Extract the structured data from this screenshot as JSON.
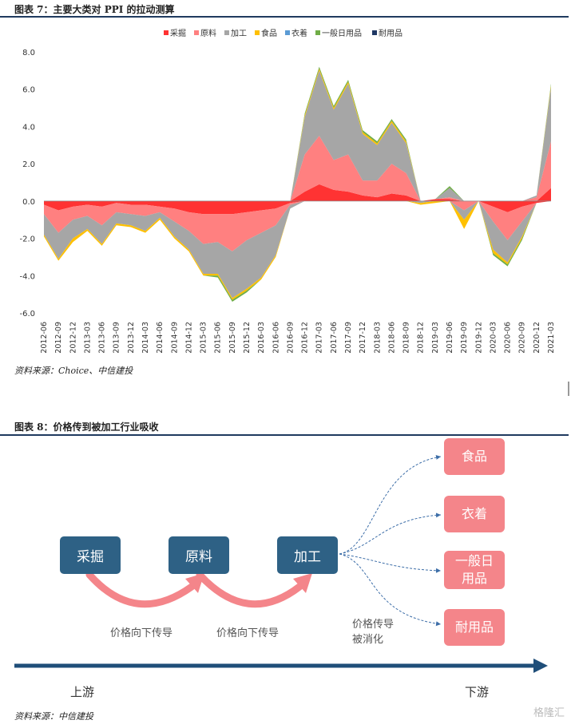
{
  "figure7": {
    "title": "图表 7：主要大类对 PPI 的拉动测算",
    "source": "资料来源：Choice、中信建投"
  },
  "figure8": {
    "title": "图表 8：价格传到被加工行业吸收",
    "source": "资料来源：中信建投",
    "nodes": {
      "mining": "采掘",
      "raw": "原料",
      "processing": "加工"
    },
    "categories": {
      "food": "食品",
      "clothing": "衣着",
      "daily": "一般日\n用品",
      "durable": "耐用品"
    },
    "arrow_label_1": "价格向下传导",
    "arrow_label_2": "价格向下传导",
    "absorbed_label": "价格传导\n被消化",
    "upstream": "上游",
    "downstream": "下游",
    "colors": {
      "node": "#2e6185",
      "category": "#f4858a",
      "arc": "#f4858a",
      "axis_arrow": "#1f4e79"
    }
  },
  "watermark": "格隆汇",
  "chart_data": {
    "type": "area",
    "stacked": true,
    "ylim": [
      -6.0,
      8.0
    ],
    "yticks": [
      "8.0",
      "6.0",
      "4.0",
      "2.0",
      "0.0",
      "-2.0",
      "-4.0",
      "-6.0"
    ],
    "xticks": [
      "2012-06",
      "2012-09",
      "2012-12",
      "2013-03",
      "2013-06",
      "2013-09",
      "2013-12",
      "2014-03",
      "2014-06",
      "2014-09",
      "2014-12",
      "2015-03",
      "2015-06",
      "2015-09",
      "2015-12",
      "2016-03",
      "2016-06",
      "2016-09",
      "2016-12",
      "2017-03",
      "2017-06",
      "2017-09",
      "2017-12",
      "2018-03",
      "2018-06",
      "2018-09",
      "2018-12",
      "2019-03",
      "2019-06",
      "2019-09",
      "2019-12",
      "2020-03",
      "2020-06",
      "2020-09",
      "2020-12",
      "2021-03"
    ],
    "legend_position": "top",
    "series": [
      {
        "name": "采掘",
        "color": "#ff3333",
        "values": [
          -0.2,
          -0.5,
          -0.3,
          -0.2,
          -0.3,
          -0.1,
          -0.2,
          -0.2,
          -0.3,
          -0.4,
          -0.6,
          -0.7,
          -0.7,
          -0.7,
          -0.6,
          -0.5,
          -0.4,
          -0.1,
          0.5,
          0.9,
          0.6,
          0.5,
          0.3,
          0.2,
          0.4,
          0.3,
          0.0,
          0.1,
          0.1,
          0.0,
          0.0,
          -0.3,
          -0.6,
          -0.3,
          -0.1,
          0.7
        ]
      },
      {
        "name": "原料",
        "color": "#ff8080",
        "values": [
          -0.5,
          -1.2,
          -0.7,
          -0.6,
          -1.0,
          -0.5,
          -0.5,
          -0.6,
          -0.3,
          -0.7,
          -1.0,
          -1.6,
          -1.5,
          -2.0,
          -1.5,
          -1.2,
          -0.9,
          -0.1,
          2.0,
          2.6,
          1.6,
          2.0,
          0.8,
          0.9,
          1.6,
          1.2,
          0.0,
          0.0,
          0.1,
          -0.5,
          0.0,
          -0.8,
          -1.5,
          -0.8,
          0.2,
          2.5
        ]
      },
      {
        "name": "加工",
        "color": "#a6a6a6",
        "values": [
          -1.1,
          -1.4,
          -1.0,
          -0.7,
          -1.0,
          -0.6,
          -0.6,
          -0.8,
          -0.3,
          -0.8,
          -1.0,
          -1.6,
          -1.7,
          -2.5,
          -2.6,
          -2.4,
          -1.6,
          -0.2,
          2.0,
          3.5,
          2.7,
          3.8,
          2.5,
          1.9,
          2.2,
          1.6,
          -0.1,
          0.0,
          0.5,
          -0.5,
          0.0,
          -1.5,
          -1.2,
          -0.8,
          0.1,
          2.9
        ]
      },
      {
        "name": "食品",
        "color": "#ffc000",
        "values": [
          -0.1,
          -0.1,
          -0.2,
          -0.1,
          -0.1,
          -0.1,
          -0.1,
          -0.1,
          -0.1,
          -0.1,
          -0.1,
          -0.1,
          -0.1,
          -0.1,
          -0.1,
          -0.1,
          -0.1,
          0.0,
          0.1,
          0.1,
          0.1,
          0.1,
          0.1,
          0.1,
          0.1,
          0.1,
          -0.1,
          -0.1,
          0.0,
          -0.5,
          0.0,
          -0.2,
          -0.1,
          -0.1,
          0.0,
          0.1
        ]
      },
      {
        "name": "衣着",
        "color": "#5b9bd5",
        "values": [
          0.0,
          0.0,
          0.0,
          0.0,
          0.0,
          0.0,
          0.0,
          0.0,
          0.0,
          0.0,
          0.0,
          0.0,
          0.0,
          0.0,
          0.0,
          0.0,
          0.0,
          0.0,
          0.0,
          0.0,
          0.0,
          0.0,
          0.0,
          0.0,
          0.0,
          0.0,
          0.0,
          0.0,
          0.0,
          0.0,
          0.0,
          0.0,
          0.0,
          0.0,
          0.0,
          0.0
        ]
      },
      {
        "name": "一般日用品",
        "color": "#70ad47",
        "values": [
          0.0,
          0.0,
          0.0,
          0.0,
          0.0,
          0.0,
          0.0,
          0.0,
          0.0,
          0.0,
          0.0,
          0.0,
          -0.1,
          -0.1,
          -0.1,
          0.0,
          0.0,
          0.0,
          0.1,
          0.1,
          0.1,
          0.1,
          0.1,
          0.1,
          0.1,
          0.1,
          0.0,
          0.0,
          0.1,
          0.0,
          0.0,
          -0.1,
          -0.1,
          -0.1,
          0.0,
          0.1
        ]
      },
      {
        "name": "耐用品",
        "color": "#1f3864",
        "values": [
          0.0,
          0.0,
          0.0,
          0.0,
          0.0,
          0.0,
          0.0,
          0.0,
          0.0,
          0.0,
          0.0,
          0.0,
          0.0,
          0.0,
          0.0,
          0.0,
          0.0,
          0.0,
          0.0,
          0.0,
          0.0,
          0.0,
          0.0,
          0.0,
          0.0,
          0.0,
          0.0,
          0.0,
          0.0,
          0.0,
          0.0,
          0.0,
          0.0,
          0.0,
          0.0,
          0.0
        ]
      }
    ]
  }
}
